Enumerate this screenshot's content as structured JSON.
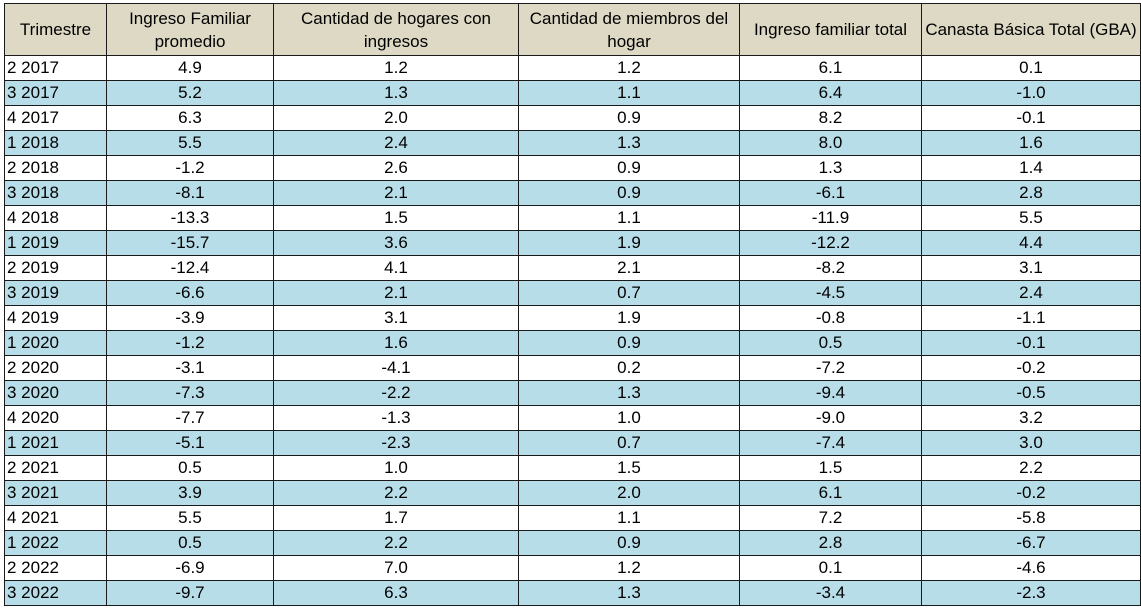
{
  "chart_data": {
    "type": "table",
    "columns": [
      "Trimestre",
      "Ingreso Familiar promedio",
      "Cantidad de hogares con ingresos",
      "Cantidad de miembros del hogar",
      "Ingreso familiar total",
      "Canasta Básica Total (GBA)"
    ],
    "rows": [
      [
        "2 2017",
        "4.9",
        "1.2",
        "1.2",
        "6.1",
        "0.1"
      ],
      [
        "3 2017",
        "5.2",
        "1.3",
        "1.1",
        "6.4",
        "-1.0"
      ],
      [
        "4 2017",
        "6.3",
        "2.0",
        "0.9",
        "8.2",
        "-0.1"
      ],
      [
        "1 2018",
        "5.5",
        "2.4",
        "1.3",
        "8.0",
        "1.6"
      ],
      [
        "2 2018",
        "-1.2",
        "2.6",
        "0.9",
        "1.3",
        "1.4"
      ],
      [
        "3 2018",
        "-8.1",
        "2.1",
        "0.9",
        "-6.1",
        "2.8"
      ],
      [
        "4 2018",
        "-13.3",
        "1.5",
        "1.1",
        "-11.9",
        "5.5"
      ],
      [
        "1 2019",
        "-15.7",
        "3.6",
        "1.9",
        "-12.2",
        "4.4"
      ],
      [
        "2 2019",
        "-12.4",
        "4.1",
        "2.1",
        "-8.2",
        "3.1"
      ],
      [
        "3 2019",
        "-6.6",
        "2.1",
        "0.7",
        "-4.5",
        "2.4"
      ],
      [
        "4 2019",
        "-3.9",
        "3.1",
        "1.9",
        "-0.8",
        "-1.1"
      ],
      [
        "1 2020",
        "-1.2",
        "1.6",
        "0.9",
        "0.5",
        "-0.1"
      ],
      [
        "2 2020",
        "-3.1",
        "-4.1",
        "0.2",
        "-7.2",
        "-0.2"
      ],
      [
        "3 2020",
        "-7.3",
        "-2.2",
        "1.3",
        "-9.4",
        "-0.5"
      ],
      [
        "4 2020",
        "-7.7",
        "-1.3",
        "1.0",
        "-9.0",
        "3.2"
      ],
      [
        "1 2021",
        "-5.1",
        "-2.3",
        "0.7",
        "-7.4",
        "3.0"
      ],
      [
        "2 2021",
        "0.5",
        "1.0",
        "1.5",
        "1.5",
        "2.2"
      ],
      [
        "3 2021",
        "3.9",
        "2.2",
        "2.0",
        "6.1",
        "-0.2"
      ],
      [
        "4 2021",
        "5.5",
        "1.7",
        "1.1",
        "7.2",
        "-5.8"
      ],
      [
        "1 2022",
        "0.5",
        "2.2",
        "0.9",
        "2.8",
        "-6.7"
      ],
      [
        "2 2022",
        "-6.9",
        "7.0",
        "1.2",
        "0.1",
        "-4.6"
      ],
      [
        "3 2022",
        "-9.7",
        "6.3",
        "1.3",
        "-3.4",
        "-2.3"
      ]
    ],
    "header_color": "#ddd9c4",
    "stripe_color": "#b7dde8"
  }
}
